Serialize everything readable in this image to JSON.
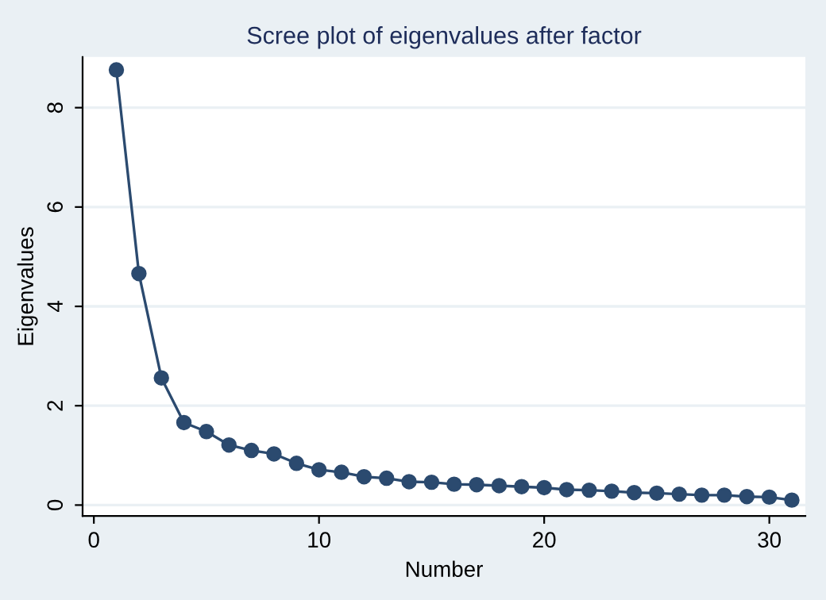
{
  "chart_data": {
    "type": "line",
    "title": "Scree plot of eigenvalues after factor",
    "xlabel": "Number",
    "ylabel": "Eigenvalues",
    "x": [
      1,
      2,
      3,
      4,
      5,
      6,
      7,
      8,
      9,
      10,
      11,
      12,
      13,
      14,
      15,
      16,
      17,
      18,
      19,
      20,
      21,
      22,
      23,
      24,
      25,
      26,
      27,
      28,
      29,
      30,
      31
    ],
    "series": [
      {
        "color": "#2b4a6f",
        "values": [
          8.76,
          4.66,
          2.56,
          1.66,
          1.48,
          1.21,
          1.1,
          1.03,
          0.84,
          0.71,
          0.66,
          0.57,
          0.54,
          0.47,
          0.46,
          0.42,
          0.41,
          0.39,
          0.37,
          0.35,
          0.31,
          0.3,
          0.28,
          0.25,
          0.24,
          0.22,
          0.2,
          0.2,
          0.17,
          0.16,
          0.1
        ]
      }
    ],
    "xlim": [
      -0.5,
      31.6
    ],
    "ylim": [
      -0.22,
      9.02
    ],
    "xticks": [
      0,
      10,
      20,
      30
    ],
    "yticks": [
      0,
      2,
      4,
      6,
      8
    ],
    "grid": "y",
    "marker": "circle",
    "line_style": "solid",
    "legend": false
  }
}
